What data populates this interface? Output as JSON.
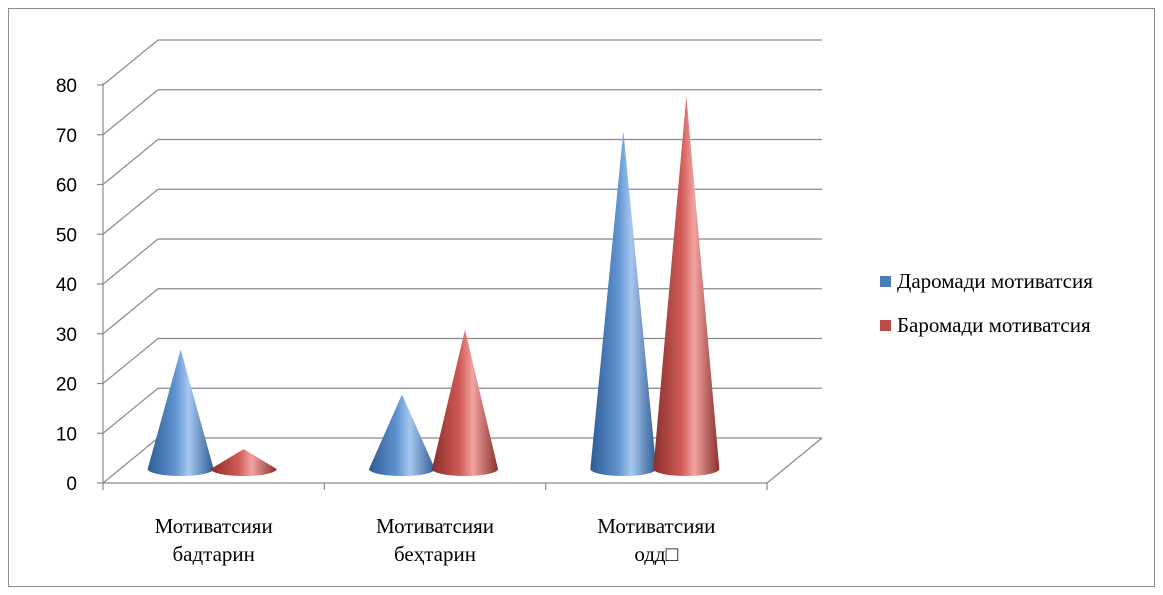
{
  "chart_data": {
    "type": "bar",
    "bar_shape": "cone-3d",
    "categories": [
      [
        "Мотиватсияи",
        "бадтарин"
      ],
      [
        "Мотиватсияи",
        "беҳтарин"
      ],
      [
        "Мотиватсияи",
        "одд□"
      ]
    ],
    "series": [
      {
        "name": "Даромади мотиватсия",
        "values": [
          24,
          15,
          68
        ],
        "color": "#4a7ebb"
      },
      {
        "name": "Баромади мотиватсия",
        "values": [
          4,
          28,
          75
        ],
        "color": "#be4b48"
      }
    ],
    "ylim": [
      0,
      80
    ],
    "yticks": [
      0,
      10,
      20,
      30,
      40,
      50,
      60,
      70,
      80
    ],
    "grid": true,
    "legend_position": "right"
  }
}
